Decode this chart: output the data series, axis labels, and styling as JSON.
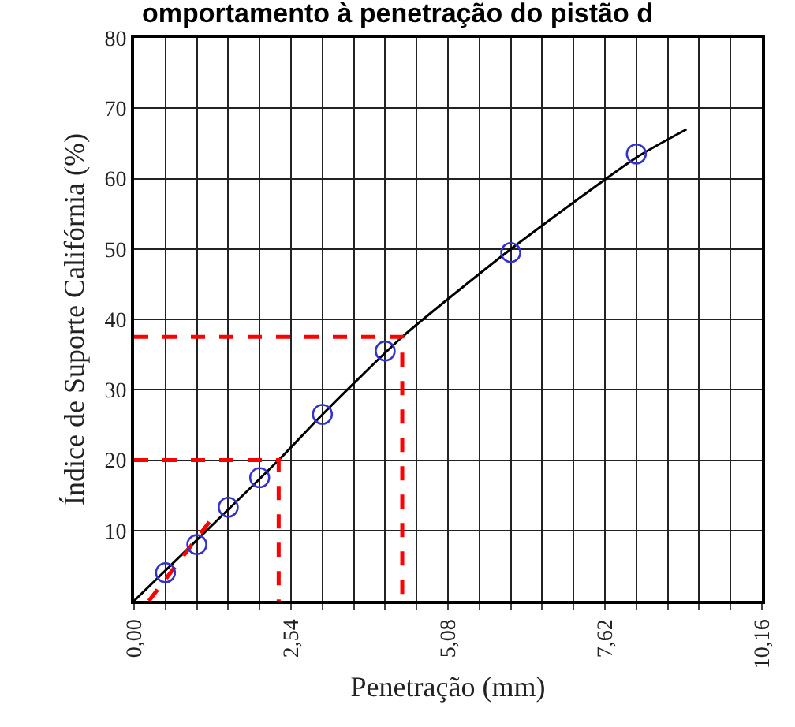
{
  "chart_data": {
    "type": "scatter",
    "title": "omportamento à penetração do pistão d",
    "xlabel": "Penetração (mm)",
    "ylabel": "Índice de Suporte Califórnia (%)",
    "series": [
      {
        "type": "line",
        "color": "#000000",
        "marker": "none",
        "line_style": "solid",
        "x": [
          0,
          1.0,
          2.34,
          3.05,
          4.34,
          6.1,
          8.13,
          8.94
        ],
        "values": [
          0,
          8.5,
          20,
          26.5,
          37.5,
          50,
          63,
          67
        ]
      },
      {
        "color": "#3333cc",
        "marker": "circle",
        "x": [
          0.508,
          1.016,
          1.524,
          2.032,
          3.048,
          4.064,
          6.096,
          8.128
        ],
        "values": [
          4,
          8,
          13.3,
          17.5,
          26.5,
          35.5,
          49.5,
          63.5
        ]
      },
      {
        "type": "line",
        "color": "#ff0000",
        "marker": "none",
        "line_style": "dashed",
        "x": [
          0.24,
          1.27
        ],
        "values": [
          0,
          11.8
        ]
      },
      {
        "type": "line",
        "color": "#ff0000",
        "marker": "none",
        "line_style": "dashed",
        "x": [
          0,
          2.34,
          2.34
        ],
        "values": [
          20,
          20,
          0
        ]
      },
      {
        "type": "line",
        "color": "#ff0000",
        "marker": "none",
        "line_style": "dashed",
        "x": [
          0,
          4.34,
          4.34
        ],
        "values": [
          37.5,
          37.5,
          0
        ]
      }
    ],
    "xlim": [
      0,
      10.16
    ],
    "xticks": [
      {
        "value": 0,
        "label": "0,00"
      },
      {
        "value": 0.508,
        "label": null
      },
      {
        "value": 1.016,
        "label": null
      },
      {
        "value": 1.524,
        "label": null
      },
      {
        "value": 2.032,
        "label": null
      },
      {
        "value": 2.54,
        "label": "2,54"
      },
      {
        "value": 3.048,
        "label": null
      },
      {
        "value": 3.556,
        "label": null
      },
      {
        "value": 4.064,
        "label": null
      },
      {
        "value": 4.572,
        "label": null
      },
      {
        "value": 5.08,
        "label": "5,08"
      },
      {
        "value": 5.588,
        "label": null
      },
      {
        "value": 6.096,
        "label": null
      },
      {
        "value": 6.604,
        "label": null
      },
      {
        "value": 7.112,
        "label": null
      },
      {
        "value": 7.62,
        "label": "7,62"
      },
      {
        "value": 8.128,
        "label": null
      },
      {
        "value": 8.636,
        "label": null
      },
      {
        "value": 9.144,
        "label": null
      },
      {
        "value": 9.652,
        "label": null
      },
      {
        "value": 10.16,
        "label": "10,16"
      }
    ],
    "ylim": [
      0,
      80
    ],
    "yticks": [
      10,
      20,
      30,
      40,
      50,
      60,
      70,
      80
    ],
    "grid": true
  }
}
